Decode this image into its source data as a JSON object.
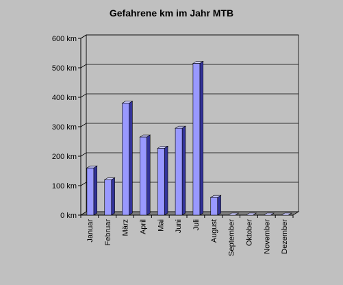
{
  "chart_data": {
    "type": "bar",
    "title": "Gefahrene km im Jahr MTB",
    "xlabel": "",
    "ylabel": "",
    "categories": [
      "Januar",
      "Februar",
      "März",
      "April",
      "Mai",
      "Juni",
      "Juli",
      "August",
      "September",
      "Oktober",
      "November",
      "Dezember"
    ],
    "series": [
      {
        "values": [
          160,
          120,
          380,
          265,
          227,
          295,
          515,
          60,
          0,
          0,
          0,
          0
        ]
      }
    ],
    "ylim": [
      0,
      600
    ],
    "yticks": [
      0,
      100,
      200,
      300,
      400,
      500,
      600
    ],
    "ytick_labels": [
      "0 km",
      "100 km",
      "200 km",
      "300 km",
      "400 km",
      "500 km",
      "600 km"
    ],
    "grid": true,
    "style": "3d-bar",
    "colors": {
      "background": "#c0c0c0",
      "plot_wall": "#c0c0c0",
      "floor": "#808080",
      "bar_front": "#9999ff",
      "bar_top": "#ccccff",
      "bar_side": "#333399",
      "grid": "#000000"
    }
  }
}
